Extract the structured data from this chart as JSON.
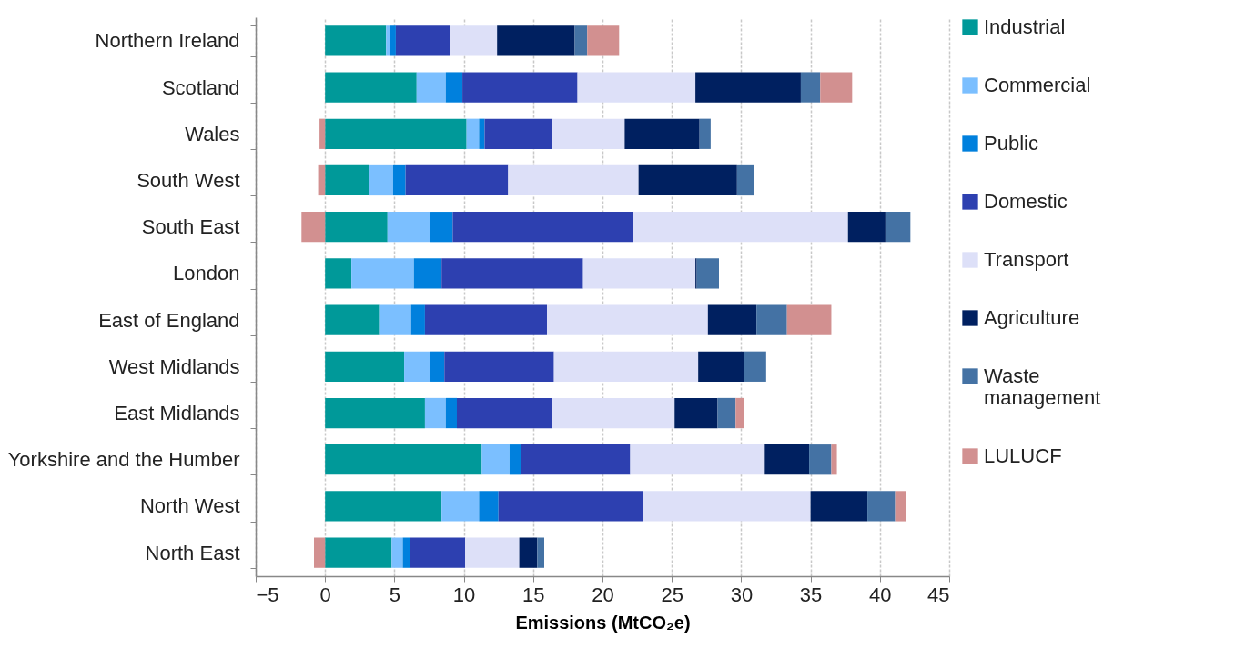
{
  "chart_data": {
    "type": "bar",
    "orientation": "horizontal",
    "stacked": true,
    "xlabel": "Emissions (MtCO₂e)",
    "categories": [
      "Northern Ireland",
      "Scotland",
      "Wales",
      "South West",
      "South East",
      "London",
      "East of England",
      "West Midlands",
      "East Midlands",
      "Yorkshire and the Humber",
      "North West",
      "North East"
    ],
    "series": [
      {
        "name": "Industrial",
        "color": "#009999",
        "values": [
          4.4,
          6.6,
          10.2,
          3.2,
          4.5,
          1.9,
          3.9,
          5.7,
          7.2,
          11.3,
          8.4,
          4.8
        ]
      },
      {
        "name": "Commercial",
        "color": "#7bbfff",
        "values": [
          0.3,
          2.1,
          0.9,
          1.7,
          3.1,
          4.5,
          2.3,
          1.9,
          1.5,
          2.0,
          2.7,
          0.8
        ]
      },
      {
        "name": "Public",
        "color": "#0080dd",
        "values": [
          0.4,
          1.2,
          0.4,
          0.9,
          1.6,
          2.0,
          1.0,
          1.0,
          0.8,
          0.8,
          1.4,
          0.5
        ]
      },
      {
        "name": "Domestic",
        "color": "#2d40b0",
        "values": [
          3.9,
          8.3,
          4.9,
          7.4,
          13.0,
          10.2,
          8.8,
          7.9,
          6.9,
          7.9,
          10.4,
          4.0
        ]
      },
      {
        "name": "Transport",
        "color": "#dde0f8",
        "values": [
          3.4,
          8.5,
          5.2,
          9.4,
          15.5,
          8.1,
          11.6,
          10.4,
          8.8,
          9.7,
          12.1,
          3.9
        ]
      },
      {
        "name": "Agriculture",
        "color": "#002060",
        "values": [
          5.6,
          7.6,
          5.4,
          7.1,
          2.7,
          0.1,
          3.5,
          3.3,
          3.1,
          3.2,
          4.1,
          1.3
        ]
      },
      {
        "name": "Waste management",
        "color": "#4472a4",
        "values": [
          0.9,
          1.4,
          0.8,
          1.2,
          1.8,
          1.6,
          2.2,
          1.6,
          1.3,
          1.6,
          2.0,
          0.5
        ]
      },
      {
        "name": "LULUCF",
        "color": "#d29090",
        "values": [
          2.3,
          2.3,
          -0.4,
          -0.5,
          -1.7,
          0,
          3.2,
          0,
          0.6,
          0.4,
          0.8,
          -0.8
        ]
      }
    ],
    "xlim": [
      -5,
      45
    ],
    "xticks": [
      -5,
      0,
      5,
      10,
      15,
      20,
      25,
      30,
      35,
      40,
      45
    ],
    "grid": "x",
    "legend": "right"
  }
}
